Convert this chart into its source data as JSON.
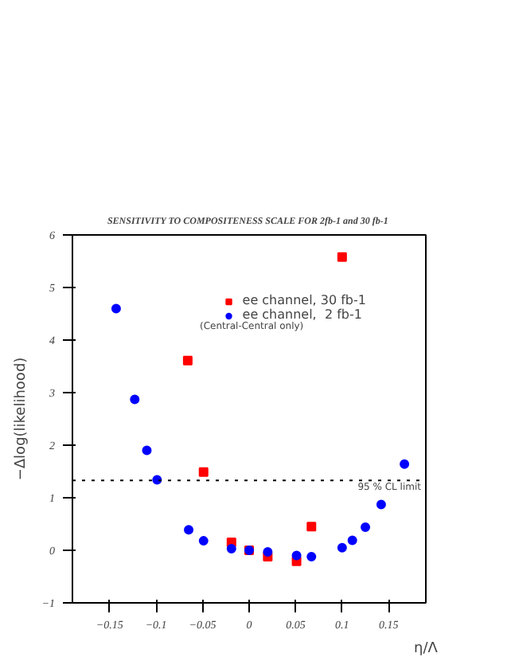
{
  "chart_data": {
    "type": "scatter",
    "title": "SENSITIVITY TO COMPOSITENESS SCALE  FOR 2fb-1 and 30 fb-1",
    "xlabel": "η/Λ",
    "ylabel": "−Δlog(likelihood)",
    "xlim": [
      -0.19,
      0.19
    ],
    "ylim": [
      -1,
      6
    ],
    "xticks": [
      -0.15,
      -0.1,
      -0.05,
      0,
      0.05,
      0.1,
      0.15
    ],
    "yticks": [
      -1,
      0,
      1,
      2,
      3,
      4,
      5,
      6
    ],
    "series": [
      {
        "name": "ee channel, 30 fb-1",
        "color": "#ff0000",
        "marker": "square",
        "x": [
          -0.066,
          -0.049,
          -0.019,
          0,
          0.02,
          0.051,
          0.067,
          0.1
        ],
        "values": [
          3.61,
          1.49,
          0.15,
          0,
          -0.12,
          -0.21,
          0.45,
          5.58
        ]
      },
      {
        "name": "ee channel,  2 fb-1",
        "color": "#0000ff",
        "marker": "circle",
        "x": [
          -0.143,
          -0.123,
          -0.11,
          -0.099,
          -0.065,
          -0.049,
          -0.019,
          0,
          0.02,
          0.051,
          0.067,
          0.1,
          0.111,
          0.125,
          0.142,
          0.167
        ],
        "values": [
          4.6,
          2.87,
          1.9,
          1.34,
          0.39,
          0.18,
          0.03,
          0,
          -0.03,
          -0.1,
          -0.12,
          0.05,
          0.19,
          0.44,
          0.87,
          1.64
        ]
      }
    ],
    "ref_lines": [
      {
        "axis": "y",
        "value": 1.33,
        "label": "95 % CL limit",
        "line_style": "dotted"
      }
    ],
    "annotations": [
      "(Central-Central only)"
    ],
    "legend": "top right",
    "grid": false
  }
}
